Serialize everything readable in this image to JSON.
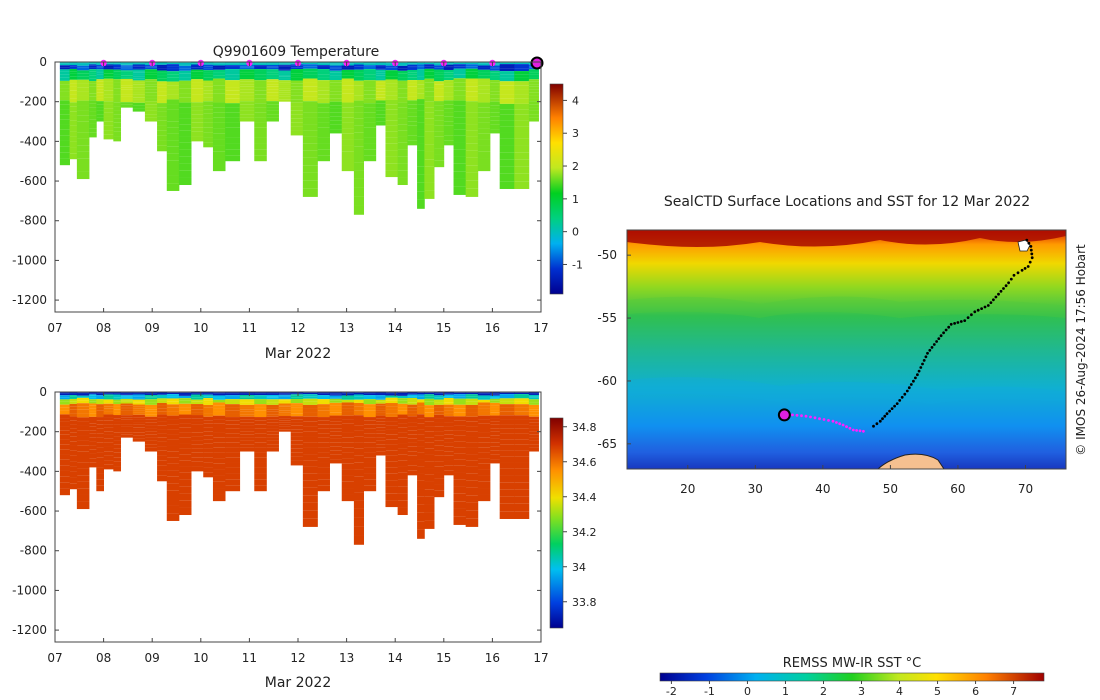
{
  "chart_data": [
    {
      "type": "heatmap",
      "id": "temperature",
      "title": "Q9901609  Temperature",
      "xlabel": "Mar 2022",
      "ylabel": "",
      "x_ticks": [
        "07",
        "08",
        "09",
        "10",
        "11",
        "12",
        "13",
        "14",
        "15",
        "16",
        "17"
      ],
      "xlim": [
        7,
        17
      ],
      "ylim": [
        -1260,
        0
      ],
      "y_ticks": [
        0,
        -200,
        -400,
        -600,
        -800,
        -1000,
        -1200
      ],
      "surface_markers_day": [
        8,
        9,
        10,
        11,
        12,
        13,
        14,
        15,
        16
      ],
      "current_marker_day": 17,
      "colorbar": {
        "min": -1.9,
        "max": 4.5,
        "ticks": [
          4,
          3,
          2,
          1,
          0,
          -1
        ]
      },
      "profiles": [
        {
          "day": 7.1,
          "depth": 520
        },
        {
          "day": 7.3,
          "depth": 490
        },
        {
          "day": 7.45,
          "depth": 590
        },
        {
          "day": 7.7,
          "depth": 380
        },
        {
          "day": 7.85,
          "depth": 300
        },
        {
          "day": 8.0,
          "depth": 390
        },
        {
          "day": 8.2,
          "depth": 400
        },
        {
          "day": 8.35,
          "depth": 230
        },
        {
          "day": 8.6,
          "depth": 250
        },
        {
          "day": 8.85,
          "depth": 300
        },
        {
          "day": 9.1,
          "depth": 450
        },
        {
          "day": 9.3,
          "depth": 650
        },
        {
          "day": 9.55,
          "depth": 620
        },
        {
          "day": 9.8,
          "depth": 400
        },
        {
          "day": 10.05,
          "depth": 430
        },
        {
          "day": 10.25,
          "depth": 550
        },
        {
          "day": 10.5,
          "depth": 500
        },
        {
          "day": 10.8,
          "depth": 300
        },
        {
          "day": 11.1,
          "depth": 500
        },
        {
          "day": 11.35,
          "depth": 300
        },
        {
          "day": 11.6,
          "depth": 200
        },
        {
          "day": 11.85,
          "depth": 370
        },
        {
          "day": 12.1,
          "depth": 680
        },
        {
          "day": 12.4,
          "depth": 500
        },
        {
          "day": 12.65,
          "depth": 360
        },
        {
          "day": 12.9,
          "depth": 550
        },
        {
          "day": 13.15,
          "depth": 770
        },
        {
          "day": 13.35,
          "depth": 500
        },
        {
          "day": 13.6,
          "depth": 320
        },
        {
          "day": 13.8,
          "depth": 580
        },
        {
          "day": 14.05,
          "depth": 620
        },
        {
          "day": 14.25,
          "depth": 420
        },
        {
          "day": 14.45,
          "depth": 740
        },
        {
          "day": 14.6,
          "depth": 690
        },
        {
          "day": 14.8,
          "depth": 530
        },
        {
          "day": 15.0,
          "depth": 420
        },
        {
          "day": 15.2,
          "depth": 670
        },
        {
          "day": 15.45,
          "depth": 680
        },
        {
          "day": 15.7,
          "depth": 550
        },
        {
          "day": 15.95,
          "depth": 360
        },
        {
          "day": 16.15,
          "depth": 640
        },
        {
          "day": 16.45,
          "depth": 640
        },
        {
          "day": 16.75,
          "depth": 300
        }
      ]
    },
    {
      "type": "heatmap",
      "id": "salinity",
      "title": "",
      "xlabel": "Mar 2022",
      "ylabel": "",
      "x_ticks": [
        "07",
        "08",
        "09",
        "10",
        "11",
        "12",
        "13",
        "14",
        "15",
        "16",
        "17"
      ],
      "xlim": [
        7,
        17
      ],
      "ylim": [
        -1260,
        0
      ],
      "y_ticks": [
        0,
        -200,
        -400,
        -600,
        -800,
        -1000,
        -1200
      ],
      "colorbar": {
        "min": 33.65,
        "max": 34.85,
        "ticks": [
          34.8,
          34.6,
          34.4,
          34.2,
          34,
          33.8
        ]
      },
      "profiles": [
        {
          "day": 7.1,
          "depth": 520
        },
        {
          "day": 7.3,
          "depth": 490
        },
        {
          "day": 7.45,
          "depth": 590
        },
        {
          "day": 7.7,
          "depth": 380
        },
        {
          "day": 7.85,
          "depth": 500
        },
        {
          "day": 8.0,
          "depth": 390
        },
        {
          "day": 8.2,
          "depth": 400
        },
        {
          "day": 8.35,
          "depth": 230
        },
        {
          "day": 8.6,
          "depth": 250
        },
        {
          "day": 8.85,
          "depth": 300
        },
        {
          "day": 9.1,
          "depth": 450
        },
        {
          "day": 9.3,
          "depth": 650
        },
        {
          "day": 9.55,
          "depth": 620
        },
        {
          "day": 9.8,
          "depth": 400
        },
        {
          "day": 10.05,
          "depth": 430
        },
        {
          "day": 10.25,
          "depth": 550
        },
        {
          "day": 10.5,
          "depth": 500
        },
        {
          "day": 10.8,
          "depth": 300
        },
        {
          "day": 11.1,
          "depth": 500
        },
        {
          "day": 11.35,
          "depth": 300
        },
        {
          "day": 11.6,
          "depth": 200
        },
        {
          "day": 11.85,
          "depth": 370
        },
        {
          "day": 12.1,
          "depth": 680
        },
        {
          "day": 12.4,
          "depth": 500
        },
        {
          "day": 12.65,
          "depth": 360
        },
        {
          "day": 12.9,
          "depth": 550
        },
        {
          "day": 13.15,
          "depth": 770
        },
        {
          "day": 13.35,
          "depth": 500
        },
        {
          "day": 13.6,
          "depth": 320
        },
        {
          "day": 13.8,
          "depth": 580
        },
        {
          "day": 14.05,
          "depth": 620
        },
        {
          "day": 14.25,
          "depth": 420
        },
        {
          "day": 14.45,
          "depth": 740
        },
        {
          "day": 14.6,
          "depth": 690
        },
        {
          "day": 14.8,
          "depth": 530
        },
        {
          "day": 15.0,
          "depth": 420
        },
        {
          "day": 15.2,
          "depth": 670
        },
        {
          "day": 15.45,
          "depth": 680
        },
        {
          "day": 15.7,
          "depth": 550
        },
        {
          "day": 15.95,
          "depth": 360
        },
        {
          "day": 16.15,
          "depth": 640
        },
        {
          "day": 16.45,
          "depth": 640
        },
        {
          "day": 16.75,
          "depth": 300
        }
      ]
    },
    {
      "type": "heatmap",
      "id": "sst-map",
      "title": "SealCTD Surface Locations and SST for 12 Mar 2022",
      "x_ticks": [
        20,
        30,
        40,
        50,
        60,
        70
      ],
      "y_ticks": [
        -50,
        -55,
        -60,
        -65
      ],
      "xlim": [
        11,
        76
      ],
      "ylim": [
        -67,
        -48
      ],
      "track_before_date": [
        [
          70.2,
          -48.8
        ],
        [
          70.8,
          -49.3
        ],
        [
          71.0,
          -50.2
        ],
        [
          70.4,
          -50.9
        ],
        [
          69.5,
          -51.2
        ],
        [
          68.3,
          -51.6
        ],
        [
          67.5,
          -52.2
        ],
        [
          66.0,
          -53.1
        ],
        [
          64.5,
          -54.0
        ],
        [
          62.5,
          -54.5
        ],
        [
          61.0,
          -55.2
        ],
        [
          59.0,
          -55.5
        ],
        [
          57.5,
          -56.4
        ],
        [
          55.5,
          -57.8
        ],
        [
          54.0,
          -59.5
        ],
        [
          52.5,
          -60.8
        ],
        [
          51.0,
          -61.8
        ],
        [
          49.5,
          -62.6
        ],
        [
          48.5,
          -63.2
        ],
        [
          47.0,
          -63.8
        ]
      ],
      "track_after_date": [
        [
          46.0,
          -64.0
        ],
        [
          44.5,
          -63.9
        ],
        [
          43.0,
          -63.5
        ],
        [
          41.5,
          -63.2
        ],
        [
          39.5,
          -63.0
        ],
        [
          37.5,
          -62.8
        ],
        [
          35.5,
          -62.7
        ],
        [
          34.3,
          -62.7
        ]
      ],
      "current_position": [
        34.3,
        -62.7
      ],
      "colorbar": {
        "label": "REMSS MW-IR SST °C",
        "min": -2.3,
        "max": 7.8,
        "ticks": [
          -2,
          -1,
          0,
          1,
          2,
          3,
          4,
          5,
          6,
          7
        ]
      }
    }
  ],
  "credit": "© IMOS 26-Aug-2024 17:56 Hobart"
}
